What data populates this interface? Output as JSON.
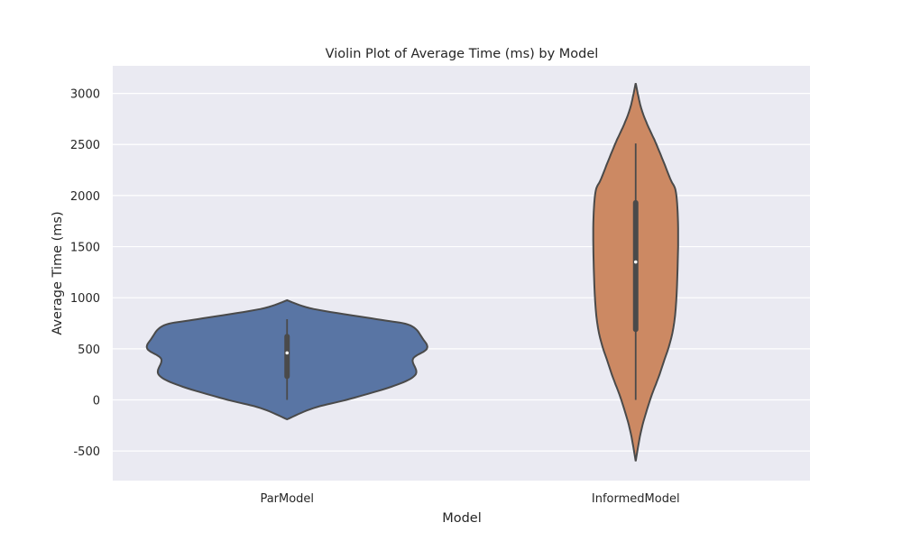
{
  "chart_data": {
    "type": "violin",
    "title": "Violin Plot of Average Time (ms) by Model",
    "xlabel": "Model",
    "ylabel": "Average Time (ms)",
    "ylim": [
      -790,
      3270
    ],
    "yticks": [
      -500,
      0,
      500,
      1000,
      1500,
      2000,
      2500,
      3000
    ],
    "grid": true,
    "background": "#eaeaf2",
    "categories": [
      "ParModel",
      "InformedModel"
    ],
    "series": [
      {
        "category": "ParModel",
        "color": "#5975a4",
        "min_extent": -190,
        "max_extent": 975,
        "whisker_low": 0,
        "q1": 230,
        "median": 460,
        "q3": 620,
        "whisker_high": 790,
        "density_profile": [
          [
            -190,
            0
          ],
          [
            -80,
            0.19
          ],
          [
            10,
            0.45
          ],
          [
            140,
            0.77
          ],
          [
            250,
            0.92
          ],
          [
            400,
            0.9
          ],
          [
            500,
            1.0
          ],
          [
            600,
            0.97
          ],
          [
            730,
            0.88
          ],
          [
            790,
            0.64
          ],
          [
            890,
            0.19
          ],
          [
            975,
            0
          ]
        ]
      },
      {
        "category": "InformedModel",
        "color": "#cc8963",
        "min_extent": -600,
        "max_extent": 3100,
        "whisker_low": 0,
        "q1": 690,
        "median": 1350,
        "q3": 1930,
        "whisker_high": 2510,
        "density_profile": [
          [
            -600,
            0
          ],
          [
            -300,
            0.13
          ],
          [
            0,
            0.34
          ],
          [
            320,
            0.62
          ],
          [
            760,
            0.91
          ],
          [
            1500,
            1.0
          ],
          [
            2000,
            0.96
          ],
          [
            2170,
            0.81
          ],
          [
            2500,
            0.49
          ],
          [
            2700,
            0.27
          ],
          [
            2870,
            0.12
          ],
          [
            3100,
            0
          ]
        ]
      }
    ]
  }
}
